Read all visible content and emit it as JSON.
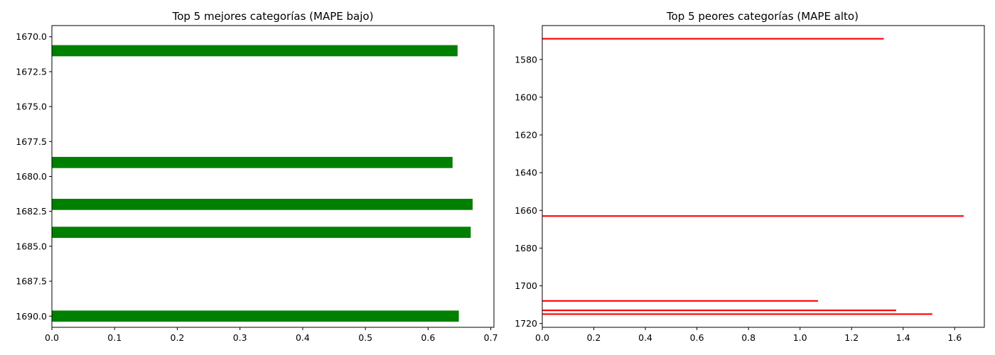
{
  "chart_data": [
    {
      "type": "bar",
      "orientation": "horizontal",
      "title": "Top 5 mejores categorías (MAPE bajo)",
      "xlabel": "",
      "ylabel": "",
      "xlim": [
        0.0,
        0.705
      ],
      "ylim": [
        1669.2,
        1690.8
      ],
      "y_inverted": true,
      "grid": false,
      "color": "#008000",
      "bar_height": 0.8,
      "x_ticks": [
        0.0,
        0.1,
        0.2,
        0.3,
        0.4,
        0.5,
        0.6,
        0.7
      ],
      "x_tick_labels": [
        "0.0",
        "0.1",
        "0.2",
        "0.3",
        "0.4",
        "0.5",
        "0.6",
        "0.7"
      ],
      "y_ticks": [
        1670.0,
        1672.5,
        1675.0,
        1677.5,
        1680.0,
        1682.5,
        1685.0,
        1687.5,
        1690.0
      ],
      "y_tick_labels": [
        "1670.0",
        "1672.5",
        "1675.0",
        "1677.5",
        "1680.0",
        "1682.5",
        "1685.0",
        "1687.5",
        "1690.0"
      ],
      "bars": [
        {
          "y": 1671,
          "value": 0.647
        },
        {
          "y": 1679,
          "value": 0.639
        },
        {
          "y": 1682,
          "value": 0.671
        },
        {
          "y": 1684,
          "value": 0.668
        },
        {
          "y": 1690,
          "value": 0.649
        }
      ]
    },
    {
      "type": "bar",
      "orientation": "horizontal",
      "title": "Top 5 peores categorías (MAPE alto)",
      "xlabel": "",
      "ylabel": "",
      "xlim": [
        0.0,
        1.715
      ],
      "ylim": [
        1562,
        1722
      ],
      "y_inverted": true,
      "grid": false,
      "color": "#ff0000",
      "bar_height": 0.8,
      "x_ticks": [
        0.0,
        0.2,
        0.4,
        0.6,
        0.8,
        1.0,
        1.2,
        1.4,
        1.6
      ],
      "x_tick_labels": [
        "0.0",
        "0.2",
        "0.4",
        "0.6",
        "0.8",
        "1.0",
        "1.2",
        "1.4",
        "1.6"
      ],
      "y_ticks": [
        1580,
        1600,
        1620,
        1640,
        1660,
        1680,
        1700,
        1720
      ],
      "y_tick_labels": [
        "1580",
        "1600",
        "1620",
        "1640",
        "1660",
        "1680",
        "1700",
        "1720"
      ],
      "bars": [
        {
          "y": 1569,
          "value": 1.325
        },
        {
          "y": 1663,
          "value": 1.635
        },
        {
          "y": 1708,
          "value": 1.07
        },
        {
          "y": 1713,
          "value": 1.373
        },
        {
          "y": 1715,
          "value": 1.513
        }
      ]
    }
  ]
}
